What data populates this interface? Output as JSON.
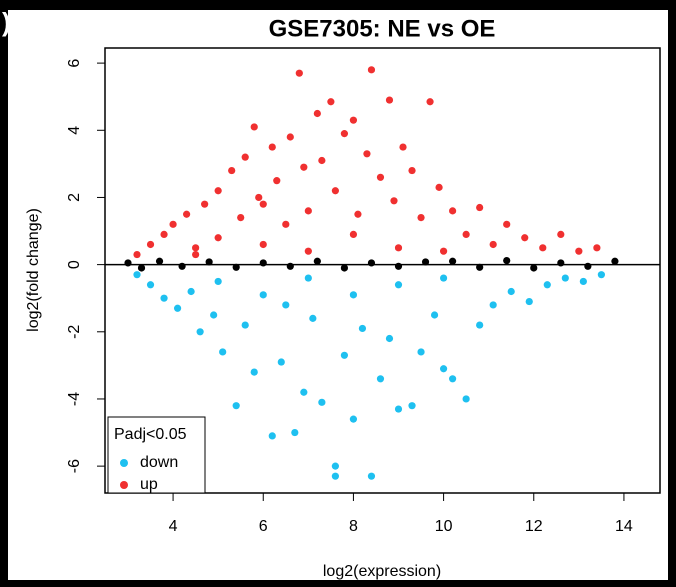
{
  "panel_label": ").",
  "chart_data": {
    "type": "scatter",
    "title": "GSE7305: NE vs OE",
    "x_label": "log2(expression)",
    "y_label": "log2(fold change)",
    "xlim": [
      2.49,
      14.8
    ],
    "ylim": [
      -6.8,
      6.45
    ],
    "xticks": [
      4,
      6,
      8,
      10,
      12,
      14
    ],
    "yticks": [
      -6,
      -4,
      -2,
      0,
      2,
      4,
      6
    ],
    "hline": 0,
    "legend_title": "Padj<0.05",
    "legend": "bottomleft",
    "series": [
      {
        "color": "#000000",
        "x": [
          3.0,
          3.3,
          3.7,
          4.2,
          4.8,
          5.4,
          6.0,
          6.6,
          7.2,
          7.8,
          8.4,
          9.0,
          9.6,
          10.2,
          10.8,
          11.4,
          12.0,
          12.6,
          13.2,
          13.8
        ],
        "values": [
          0.05,
          -0.1,
          0.1,
          -0.05,
          0.08,
          -0.08,
          0.05,
          -0.05,
          0.1,
          -0.1,
          0.05,
          -0.05,
          0.08,
          0.1,
          -0.08,
          0.12,
          -0.1,
          0.05,
          -0.05,
          0.1
        ]
      },
      {
        "name": "down",
        "color": "#1ec0f0",
        "x": [
          3.2,
          3.5,
          3.8,
          4.1,
          4.4,
          4.6,
          4.9,
          5.1,
          5.4,
          5.6,
          5.8,
          6.0,
          6.2,
          6.4,
          6.7,
          6.9,
          7.1,
          7.3,
          7.6,
          7.6,
          7.8,
          8.0,
          8.2,
          8.4,
          8.6,
          8.8,
          9.0,
          9.3,
          9.5,
          9.8,
          10.0,
          10.2,
          10.5,
          10.8,
          11.1,
          11.5,
          11.9,
          12.3,
          12.7,
          13.1,
          13.5,
          5.0,
          6.5,
          7.0,
          8.0,
          9.0,
          10.0
        ],
        "values": [
          -0.3,
          -0.6,
          -1.0,
          -1.3,
          -0.8,
          -2.0,
          -1.5,
          -2.6,
          -4.2,
          -1.8,
          -3.2,
          -0.9,
          -5.1,
          -2.9,
          -5.0,
          -3.8,
          -1.6,
          -4.1,
          -6.0,
          -6.3,
          -2.7,
          -4.6,
          -1.9,
          -6.3,
          -3.4,
          -2.2,
          -4.3,
          -4.2,
          -2.6,
          -1.5,
          -3.1,
          -3.4,
          -4.0,
          -1.8,
          -1.2,
          -0.8,
          -1.1,
          -0.6,
          -0.4,
          -0.5,
          -0.3,
          -0.5,
          -1.2,
          -0.4,
          -0.9,
          -0.6,
          -0.4
        ]
      },
      {
        "name": "up",
        "color": "#f03030",
        "x": [
          3.2,
          3.5,
          3.8,
          4.0,
          4.3,
          4.5,
          4.7,
          5.0,
          5.0,
          5.3,
          5.5,
          5.6,
          5.8,
          5.9,
          6.0,
          6.2,
          6.3,
          6.5,
          6.6,
          6.8,
          6.9,
          7.0,
          7.2,
          7.3,
          7.5,
          7.6,
          7.8,
          8.0,
          8.1,
          8.3,
          8.4,
          8.6,
          8.8,
          8.9,
          9.1,
          9.3,
          9.5,
          9.7,
          9.9,
          10.2,
          10.5,
          10.8,
          11.1,
          11.4,
          11.8,
          12.2,
          12.6,
          13.0,
          13.4,
          4.5,
          6.0,
          7.0,
          8.0,
          9.0,
          10.0
        ],
        "values": [
          0.3,
          0.6,
          0.9,
          1.2,
          1.5,
          0.5,
          1.8,
          2.2,
          0.8,
          2.8,
          1.4,
          3.2,
          4.1,
          2.0,
          0.6,
          3.5,
          2.5,
          1.2,
          3.8,
          5.7,
          2.9,
          1.6,
          4.5,
          3.1,
          4.85,
          2.2,
          3.9,
          4.3,
          1.5,
          3.3,
          5.8,
          2.6,
          4.9,
          1.9,
          3.5,
          2.8,
          1.4,
          4.85,
          2.3,
          1.6,
          0.9,
          1.7,
          0.6,
          1.2,
          0.8,
          0.5,
          0.9,
          0.4,
          0.5,
          0.3,
          1.8,
          0.4,
          0.9,
          0.5,
          0.4
        ]
      }
    ]
  }
}
